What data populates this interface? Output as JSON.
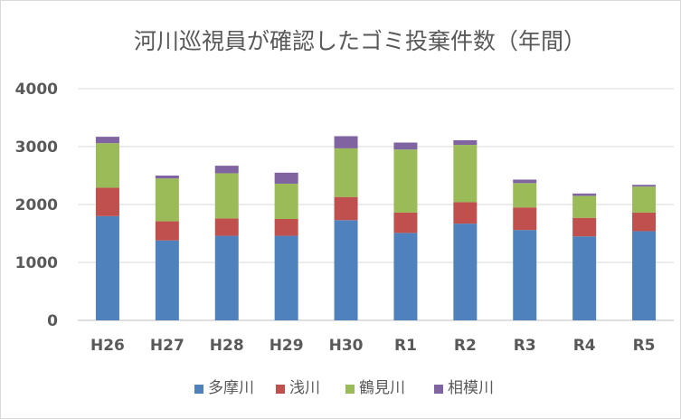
{
  "chart_data": {
    "type": "bar",
    "stacked": true,
    "title": "河川巡視員が確認したゴミ投棄件数（年間）",
    "categories": [
      "H26",
      "H27",
      "H28",
      "H29",
      "H30",
      "R1",
      "R2",
      "R3",
      "R4",
      "R5"
    ],
    "series": [
      {
        "name": "多摩川",
        "color": "#4F81BD",
        "values": [
          1800,
          1380,
          1460,
          1460,
          1730,
          1510,
          1670,
          1560,
          1450,
          1540
        ]
      },
      {
        "name": "浅川",
        "color": "#C0504D",
        "values": [
          490,
          330,
          300,
          290,
          400,
          350,
          370,
          390,
          320,
          320
        ]
      },
      {
        "name": "鶴見川",
        "color": "#9BBB59",
        "values": [
          770,
          740,
          780,
          610,
          840,
          1090,
          990,
          420,
          380,
          450
        ]
      },
      {
        "name": "相模川",
        "color": "#8064A2",
        "values": [
          110,
          50,
          130,
          190,
          210,
          120,
          80,
          60,
          40,
          30
        ]
      }
    ],
    "yticks": [
      "0",
      "1000",
      "2000",
      "3000",
      "4000"
    ],
    "ylim": [
      0,
      4000
    ],
    "grid": true,
    "legend": "bottom"
  }
}
